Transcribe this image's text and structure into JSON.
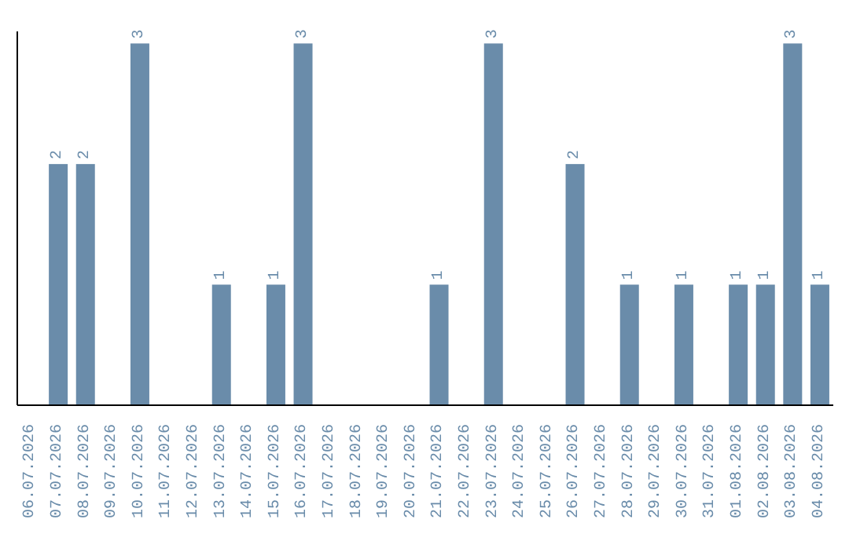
{
  "chart_data": {
    "type": "bar",
    "categories": [
      "06.07.2026",
      "07.07.2026",
      "08.07.2026",
      "09.07.2026",
      "10.07.2026",
      "11.07.2026",
      "12.07.2026",
      "13.07.2026",
      "14.07.2026",
      "15.07.2026",
      "16.07.2026",
      "17.07.2026",
      "18.07.2026",
      "19.07.2026",
      "20.07.2026",
      "21.07.2026",
      "22.07.2026",
      "23.07.2026",
      "24.07.2026",
      "25.07.2026",
      "26.07.2026",
      "27.07.2026",
      "28.07.2026",
      "29.07.2026",
      "30.07.2026",
      "31.07.2026",
      "01.08.2026",
      "02.08.2026",
      "03.08.2026",
      "04.08.2026"
    ],
    "values": [
      0,
      2,
      2,
      0,
      3,
      0,
      0,
      1,
      0,
      1,
      3,
      0,
      0,
      0,
      0,
      1,
      0,
      3,
      0,
      0,
      2,
      0,
      1,
      0,
      1,
      0,
      1,
      1,
      3,
      1
    ],
    "value_labels": [
      null,
      "2",
      "2",
      null,
      "3",
      null,
      null,
      "1",
      null,
      "1",
      "3",
      null,
      null,
      null,
      null,
      "1",
      null,
      "3",
      null,
      null,
      "2",
      null,
      "1",
      null,
      "1",
      null,
      "1",
      "1",
      "3",
      "1"
    ],
    "color": "#6a8caa",
    "ylim": [
      0,
      3.1
    ],
    "tick_labels": "x",
    "grid": false,
    "legend": false
  }
}
